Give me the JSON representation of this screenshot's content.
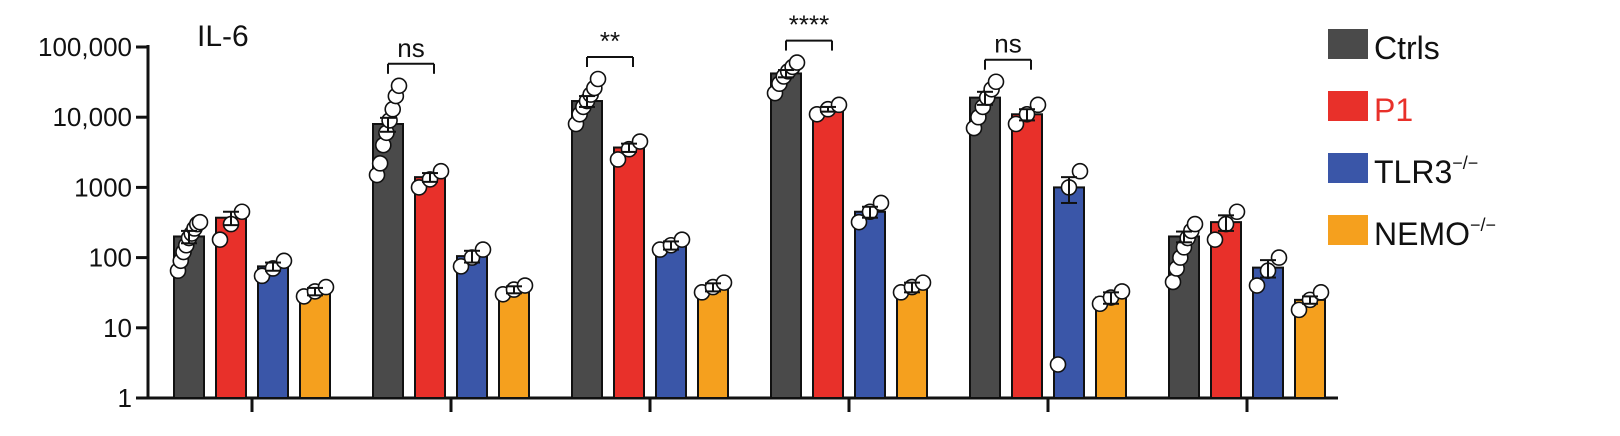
{
  "chart_data": {
    "type": "bar",
    "title": "IL-6",
    "xlabel": "",
    "ylabel": "",
    "yscale": "log",
    "ylim": [
      1,
      100000
    ],
    "y_ticks": [
      1,
      10,
      100,
      1000,
      10000,
      100000
    ],
    "y_tick_labels": [
      "1",
      "10",
      "100",
      "1000",
      "10,000",
      "100,000"
    ],
    "categories": [
      "",
      "",
      "",
      "",
      "",
      ""
    ],
    "series": [
      {
        "name": "Ctrls",
        "color": "#4a4a4a",
        "values": [
          200,
          8000,
          17000,
          42000,
          19000,
          200
        ],
        "errors": [
          40,
          1800,
          3000,
          5000,
          4000,
          35
        ],
        "points": [
          [
            65,
            90,
            120,
            150,
            190,
            220,
            260,
            300,
            320
          ],
          [
            1500,
            2200,
            4000,
            6000,
            9000,
            13000,
            20000,
            28000
          ],
          [
            8000,
            11000,
            14000,
            17000,
            21000,
            26000,
            35000
          ],
          [
            22000,
            30000,
            38000,
            45000,
            52000,
            60000
          ],
          [
            7000,
            10000,
            14000,
            19000,
            25000,
            32000
          ],
          [
            45,
            70,
            100,
            140,
            190,
            240,
            300
          ]
        ]
      },
      {
        "name": "P1",
        "color": "#e8302a",
        "values": [
          370,
          1400,
          3700,
          13000,
          11000,
          320
        ],
        "errors": [
          80,
          200,
          500,
          1000,
          2000,
          80
        ],
        "points": [
          [
            180,
            300,
            450
          ],
          [
            1000,
            1300,
            1700
          ],
          [
            2500,
            3500,
            4500
          ],
          [
            11000,
            13000,
            15000
          ],
          [
            8000,
            11000,
            15000
          ],
          [
            180,
            300,
            450
          ]
        ]
      },
      {
        "name": "TLR3",
        "sup": "−/−",
        "color": "#3a56a8",
        "values": [
          75,
          105,
          150,
          450,
          1000,
          72
        ],
        "errors": [
          10,
          20,
          20,
          80,
          400,
          20
        ],
        "points": [
          [
            55,
            70,
            90
          ],
          [
            75,
            100,
            130
          ],
          [
            130,
            150,
            180
          ],
          [
            320,
            450,
            600
          ],
          [
            3,
            1000,
            1700
          ],
          [
            40,
            65,
            100
          ]
        ]
      },
      {
        "name": "NEMO",
        "sup": "−/−",
        "color": "#f5a01e",
        "values": [
          33,
          35,
          38,
          38,
          27,
          25
        ],
        "errors": [
          4,
          4,
          5,
          6,
          5,
          3
        ],
        "points": [
          [
            28,
            33,
            38
          ],
          [
            30,
            35,
            40
          ],
          [
            32,
            38,
            44
          ],
          [
            32,
            38,
            44
          ],
          [
            22,
            27,
            33
          ],
          [
            18,
            25,
            32
          ]
        ]
      }
    ],
    "significance": [
      {
        "group": 1,
        "label": "ns"
      },
      {
        "group": 2,
        "label": "**"
      },
      {
        "group": 3,
        "label": "****"
      },
      {
        "group": 4,
        "label": "ns"
      }
    ],
    "legend_position": "right",
    "grid": false
  }
}
